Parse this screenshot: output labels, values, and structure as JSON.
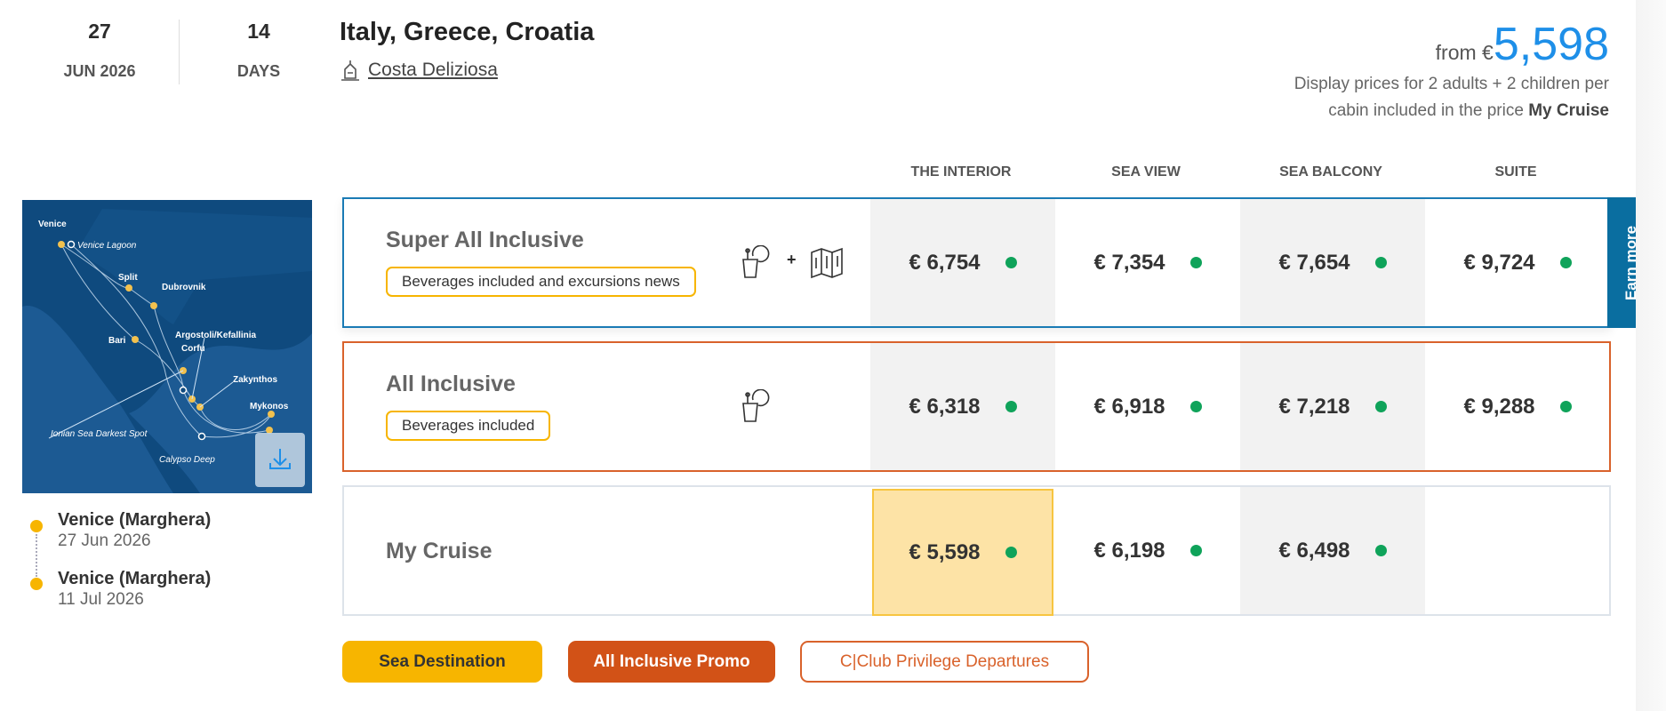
{
  "header": {
    "day": "27",
    "month_year": "JUN 2026",
    "duration": "14",
    "duration_unit": "DAYS",
    "title": "Italy, Greece, Croatia",
    "ship": "Costa Deliziosa"
  },
  "price": {
    "from_label": "from €",
    "amount": "5,598",
    "note": "Display prices for 2 adults + 2 children per cabin included in the price",
    "note_bold": "My Cruise",
    "accent": "#1e8fe8"
  },
  "columns": [
    "THE INTERIOR",
    "SEA VIEW",
    "SEA BALCONY",
    "SUITE"
  ],
  "rows": [
    {
      "name": "Super All Inclusive",
      "tag": "Beverages included and excursions news",
      "border": "#1a7bb5",
      "icons": [
        "drinks-icon",
        "plus",
        "excursion-map-icon"
      ],
      "prices": [
        "€ 6,754",
        "€ 7,354",
        "€ 7,654",
        "€ 9,724"
      ]
    },
    {
      "name": "All Inclusive",
      "tag": "Beverages included",
      "border": "#d9622b",
      "icons": [
        "drinks-icon"
      ],
      "prices": [
        "€ 6,318",
        "€ 6,918",
        "€ 7,218",
        "€ 9,288"
      ]
    },
    {
      "name": "My Cruise",
      "border": "#dde3ea",
      "prices": [
        "€ 5,598",
        "€ 6,198",
        "€ 6,498",
        ""
      ],
      "selected": "THE INTERIOR"
    }
  ],
  "earn_more": "Earn more",
  "plus": "+",
  "badges": [
    "Sea Destination",
    "All Inclusive Promo",
    "C|Club Privilege Departures"
  ],
  "itinerary": [
    {
      "port": "Venice (Marghera)",
      "date": "27 Jun 2026"
    },
    {
      "port": "Venice (Marghera)",
      "date": "11 Jul 2026"
    }
  ],
  "map": {
    "labels": {
      "venice": "Venice",
      "lagoon": "Venice Lagoon",
      "split": "Split",
      "dubrovnik": "Dubrovnik",
      "bari": "Bari",
      "argostoli": "Argostoli/Kefallinia",
      "corfu": "Corfu",
      "zakynthos": "Zakynthos",
      "mykonos": "Mykonos",
      "ionian": "Ionian Sea Darkest Spot",
      "calypso": "Calypso Deep"
    }
  }
}
